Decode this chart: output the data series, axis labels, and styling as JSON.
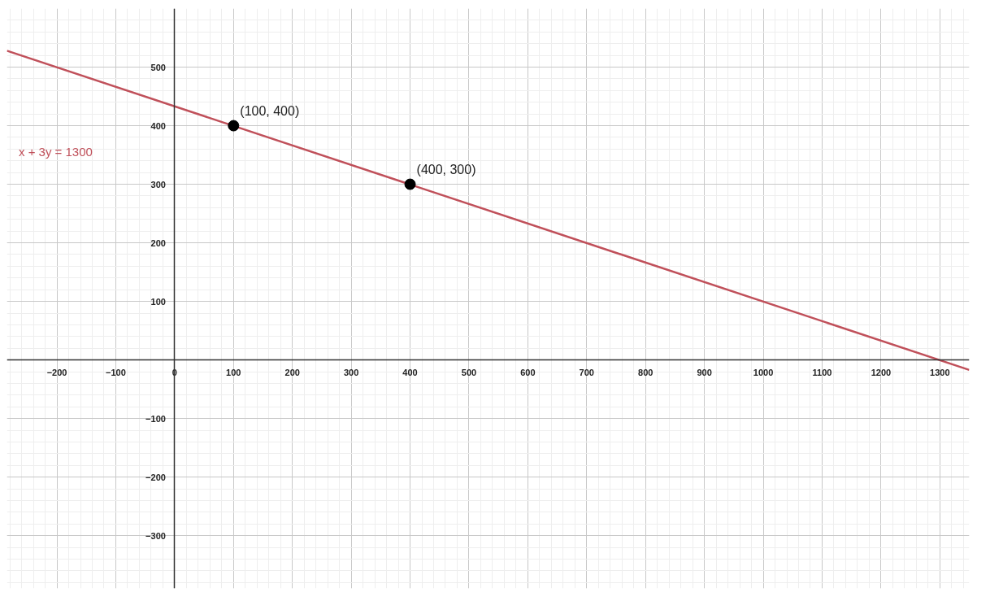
{
  "chart_data": {
    "type": "line",
    "xlim": [
      -285,
      1350
    ],
    "ylim": [
      -390,
      600
    ],
    "xticks": [
      -200,
      -100,
      0,
      100,
      200,
      300,
      400,
      500,
      600,
      700,
      800,
      900,
      1000,
      1100,
      1200,
      1300
    ],
    "yticks": [
      -300,
      -200,
      -100,
      100,
      200,
      300,
      400,
      500
    ],
    "grid": true,
    "marker": "none",
    "line_style": "solid",
    "series": [
      {
        "name": "x + 3y = 1300",
        "color": "#c0505a",
        "x": [
          -285,
          1350
        ],
        "values": [
          528,
          -17
        ]
      },
      {
        "type": "scatter",
        "color": "#000000",
        "marker": "circle",
        "x": [
          100,
          400
        ],
        "values": [
          400,
          300
        ]
      }
    ],
    "annotations": [
      {
        "text": "(100, 400)",
        "x": 100,
        "y": 400
      },
      {
        "text": "(400, 300)",
        "x": 400,
        "y": 300
      }
    ]
  }
}
